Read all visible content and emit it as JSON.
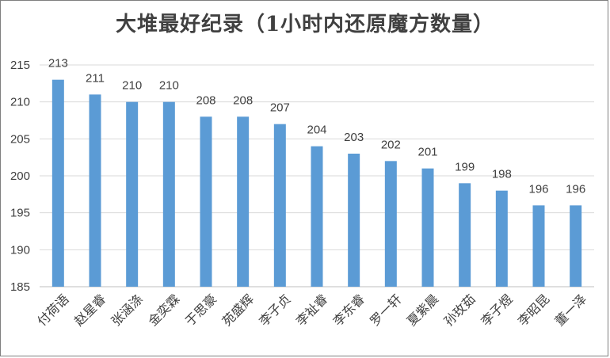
{
  "chart_data": {
    "type": "bar",
    "title": "大堆最好纪录（1小时内还原魔方数量）",
    "xlabel": "",
    "ylabel": "",
    "ylim": [
      185,
      215
    ],
    "yticks": [
      185,
      190,
      195,
      200,
      205,
      210,
      215
    ],
    "grid": true,
    "legend": "none",
    "bar_color": "#5b9bd5",
    "categories": [
      "付荷语",
      "赵星睿",
      "张涵涤",
      "金奕霖",
      "于思豪",
      "苑盛辉",
      "李子贞",
      "李祉睿",
      "李东睿",
      "罗一轩",
      "夏紫晨",
      "孙玫茹",
      "李子煜",
      "李昭昆",
      "董一泽"
    ],
    "values": [
      213,
      211,
      210,
      210,
      208,
      208,
      207,
      204,
      203,
      202,
      201,
      199,
      198,
      196,
      196
    ]
  }
}
